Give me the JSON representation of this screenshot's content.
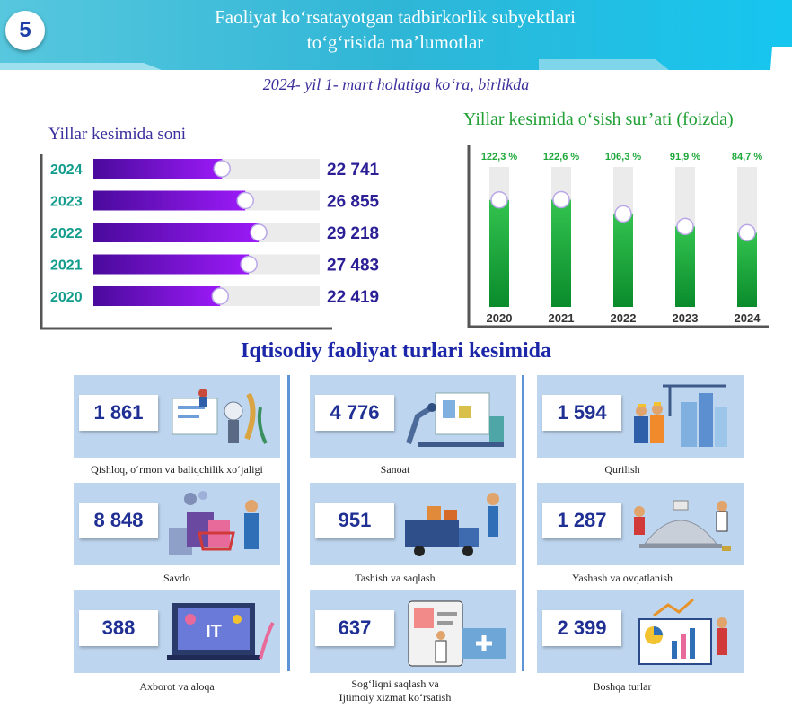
{
  "header": {
    "badge": "5",
    "title_line1": "Faoliyat ko‘rsatayotgan tadbirkorlik subyektlari",
    "title_line2": "to‘g‘risida ma’lumotlar",
    "subtitle": "2024- yil 1- mart holatiga ko‘ra, birlikda"
  },
  "colors": {
    "header_teal": "#2ab9d8",
    "purple_bar": "#8a14f2",
    "green_bar": "#1fa83a",
    "tile_bg": "#bdd5ee",
    "title_blue": "#1b27a8"
  },
  "left_chart_title": "Yillar kesimida soni",
  "right_chart_title": "Yillar kesimida o‘sish sur’ati (foizda)",
  "section_title": "Iqtisodiy faoliyat turlari kesimida",
  "chart_data": [
    {
      "type": "bar",
      "orientation": "horizontal",
      "categories": [
        "2024",
        "2023",
        "2022",
        "2021",
        "2020"
      ],
      "values": [
        22741,
        26855,
        29218,
        27483,
        22419
      ],
      "value_labels": [
        "22 741",
        "26 855",
        "29 218",
        "27 483",
        "22 419"
      ],
      "xlim": [
        0,
        40000
      ]
    },
    {
      "type": "bar",
      "orientation": "vertical",
      "categories": [
        "2020",
        "2021",
        "2022",
        "2023",
        "2024"
      ],
      "values": [
        122.3,
        122.6,
        106.3,
        91.9,
        84.7
      ],
      "value_labels": [
        "122,3 %",
        "122,6 %",
        "106,3 %",
        "91,9 %",
        "84,7 %"
      ],
      "ylim": [
        0,
        160
      ]
    },
    {
      "type": "table",
      "rows": [
        {
          "value": "1 861",
          "label": "Qishloq, o‘rmon va baliqchilik xo‘jaligi",
          "icon": "farming-lab-illustration"
        },
        {
          "value": "4 776",
          "label": "Sanoat",
          "icon": "factory-robot-illustration"
        },
        {
          "value": "1 594",
          "label": "Qurilish",
          "icon": "construction-workers-illustration"
        },
        {
          "value": "8 848",
          "label": "Savdo",
          "icon": "shopping-bags-illustration"
        },
        {
          "value": "951",
          "label": "Tashish va saqlash",
          "icon": "delivery-truck-illustration"
        },
        {
          "value": "1 287",
          "label": "Yashash va ovqatlanish",
          "icon": "hotel-service-illustration"
        },
        {
          "value": "388",
          "label": "Axborot va aloqa",
          "icon": "it-laptop-illustration"
        },
        {
          "value": "637",
          "label": "Sog‘liqni saqlash va",
          "label2": "Ijtimoiy xizmat ko‘rsatish",
          "icon": "medical-clipboard-illustration"
        },
        {
          "value": "2 399",
          "label": "Boshqa turlar",
          "icon": "business-analytics-illustration"
        }
      ]
    }
  ]
}
